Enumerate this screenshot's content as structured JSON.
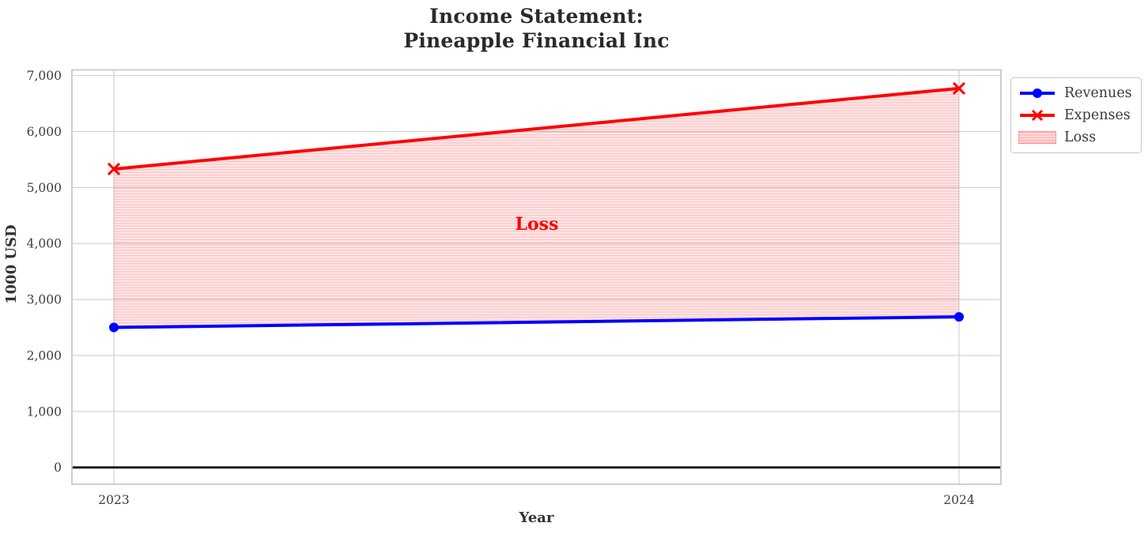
{
  "title": {
    "line1": "Income Statement:",
    "line2": "Pineapple Financial Inc"
  },
  "chart_data": {
    "type": "line",
    "title": "Income Statement:\nPineapple Financial Inc",
    "xlabel": "Year",
    "ylabel": "1000 USD",
    "x": [
      2023,
      2024
    ],
    "series": [
      {
        "name": "Revenues",
        "values": [
          2500,
          2690
        ],
        "color": "#0000ff",
        "marker": "circle"
      },
      {
        "name": "Expenses",
        "values": [
          5330,
          6770
        ],
        "color": "#ff0000",
        "marker": "x"
      }
    ],
    "loss_region": {
      "label": "Loss",
      "between": [
        "Expenses",
        "Revenues"
      ],
      "style": "horizontal-hatch",
      "fill_color": "rgba(255,0,0,0.085)",
      "hatch_color": "rgba(255,0,0,0.18)"
    },
    "annotation": {
      "text": "Loss",
      "x": 2023.5,
      "y": 4300,
      "color": "#ff0000"
    },
    "xticks": {
      "values": [
        2023,
        2024
      ],
      "labels": [
        "2023",
        "2024"
      ]
    },
    "yticks": {
      "values": [
        0,
        1000,
        2000,
        3000,
        4000,
        5000,
        6000,
        7000
      ],
      "labels": [
        "0",
        "1,000",
        "2,000",
        "3,000",
        "4,000",
        "5,000",
        "6,000",
        "7,000"
      ]
    },
    "xlim": [
      2022.9504,
      2024.0496
    ],
    "ylim": [
      -300,
      7100
    ],
    "grid": true,
    "zero_line": {
      "show": true,
      "color": "#000000"
    },
    "legend": {
      "position": "top-right-outside",
      "entries": [
        "Revenues",
        "Expenses",
        "Loss"
      ]
    }
  },
  "colors": {
    "revenues": "#0000ff",
    "expenses": "#ff0000",
    "loss_text": "#ff0000",
    "grid": "#d4d4d4",
    "spine": "#c9c9c9",
    "tick_text": "#3d3d3d",
    "title_text": "#2a2a2a",
    "zero_line": "#000000"
  }
}
